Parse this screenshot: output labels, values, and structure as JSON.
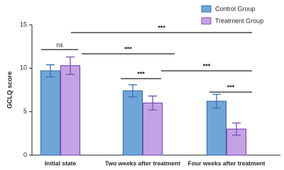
{
  "chart_data": {
    "type": "bar",
    "y_label": "GCLQ score",
    "categories": [
      "Initial state",
      "Two weeks after treatment",
      "Four weeks after treatment"
    ],
    "series": [
      {
        "name": "Control Group",
        "color": "#6ea6da",
        "edge": "#3f6fae",
        "values": [
          9.7,
          7.4,
          6.2
        ],
        "errors": [
          0.7,
          0.7,
          0.8
        ]
      },
      {
        "name": "Treatment Group",
        "color": "#c3a3e6",
        "edge": "#7b4fb3",
        "values": [
          10.3,
          6.0,
          3.0
        ],
        "errors": [
          1.0,
          0.8,
          0.7
        ]
      }
    ],
    "ylim": [
      0,
      15
    ],
    "yticks": [
      0,
      5,
      10,
      15
    ],
    "annotations": [
      "ns",
      "***",
      "***",
      "***",
      "***",
      "***"
    ]
  }
}
